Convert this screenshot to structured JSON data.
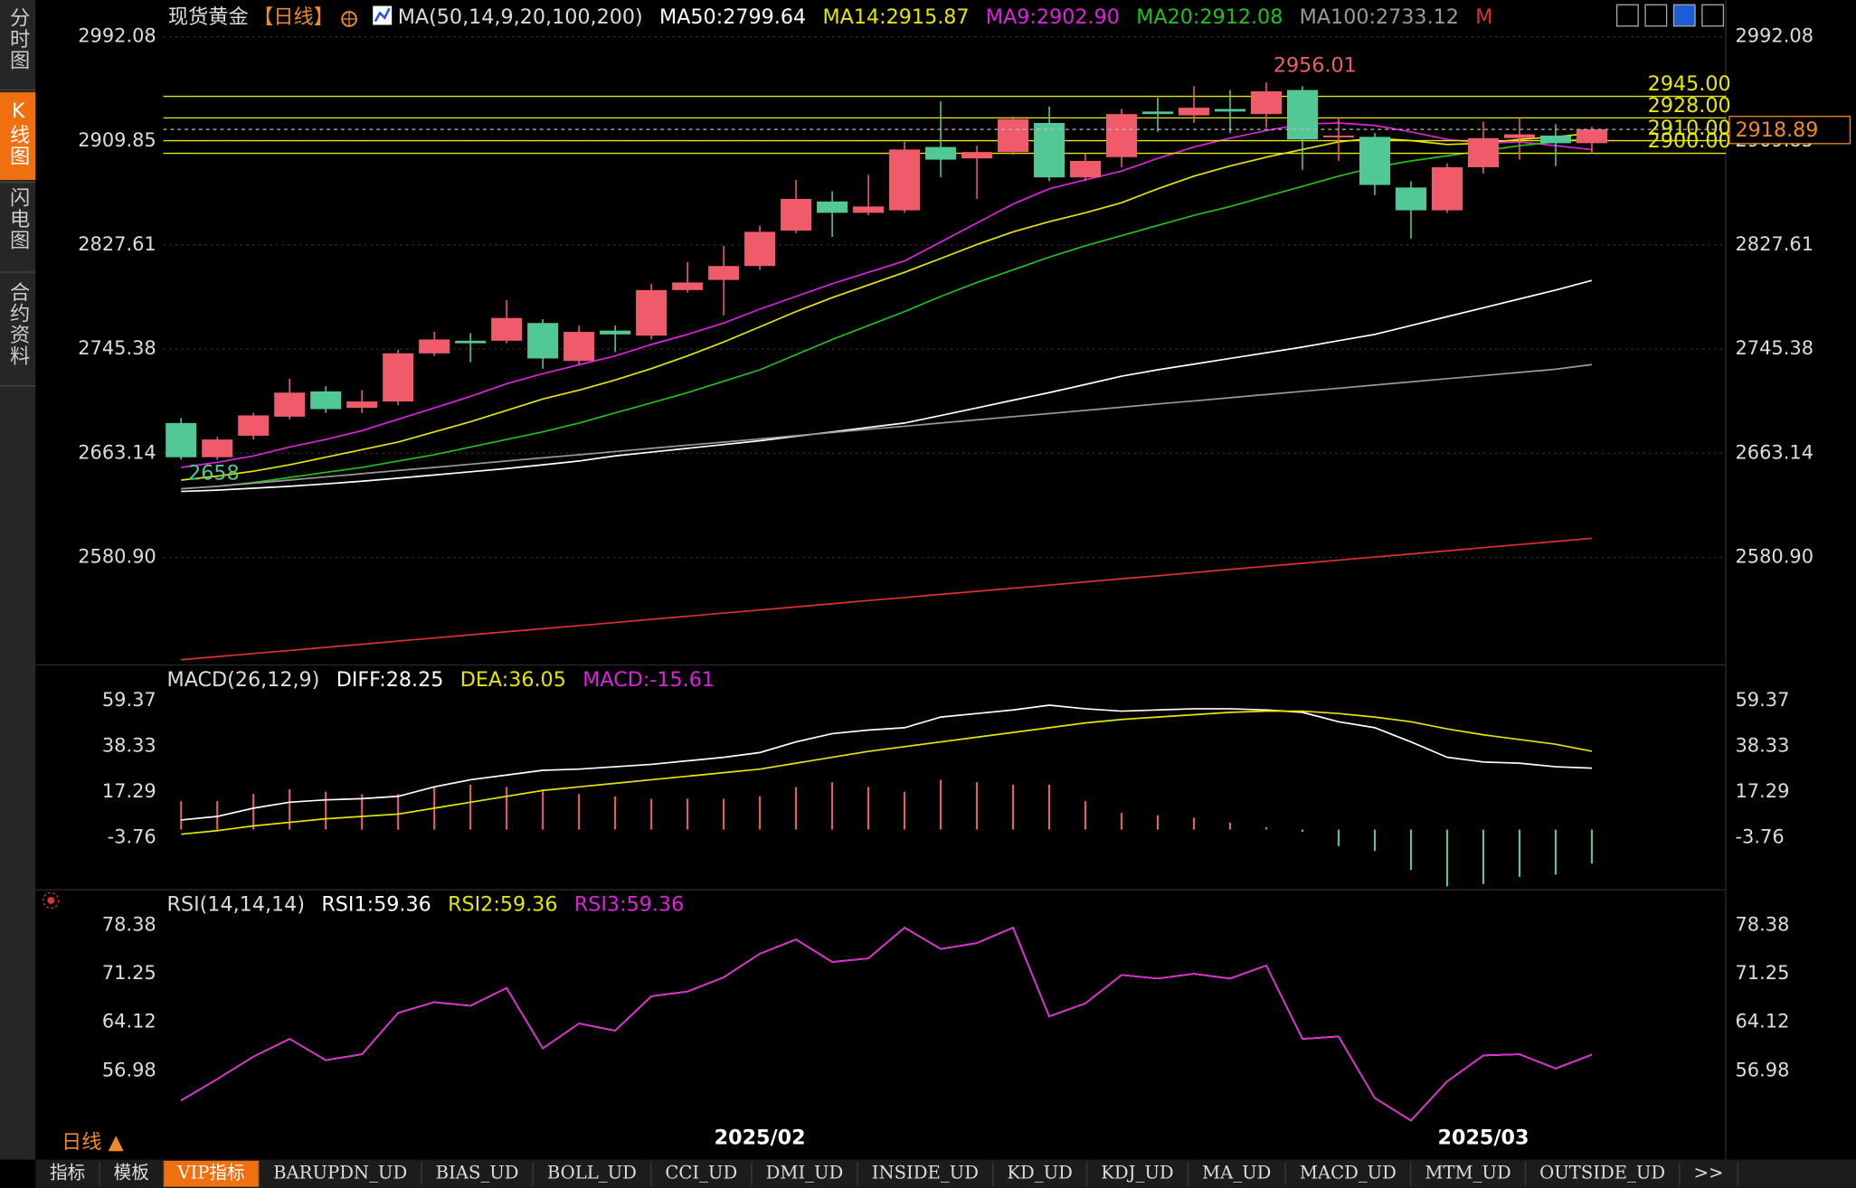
{
  "chart_data": [
    {
      "type": "candlestick",
      "title": "现货黄金",
      "period": "【日线】",
      "indicator": "MA(50,14,9,20,100,200)",
      "categories": [
        null,
        null,
        null,
        null,
        null,
        null,
        null,
        null,
        null,
        null,
        null,
        null,
        null,
        null,
        null,
        null,
        "2025/02",
        null,
        null,
        null,
        null,
        null,
        null,
        null,
        null,
        null,
        null,
        null,
        null,
        null,
        null,
        null,
        null,
        null,
        null,
        null,
        "2025/03",
        null,
        null,
        null
      ],
      "open": [
        2687,
        2660,
        2677,
        2692,
        2712,
        2699,
        2704,
        2742,
        2752,
        2752,
        2766,
        2736,
        2760,
        2756,
        2792,
        2800,
        2811,
        2839,
        2862,
        2853,
        2855,
        2905,
        2896,
        2901,
        2924,
        2881,
        2897,
        2933,
        2930,
        2935,
        2931,
        2950,
        2913,
        2913,
        2873,
        2855,
        2889,
        2912,
        2914,
        2908
      ],
      "high": [
        2691,
        2676,
        2695,
        2722,
        2716,
        2713,
        2745,
        2759,
        2758,
        2784,
        2769,
        2764,
        2764,
        2797,
        2814,
        2827,
        2843,
        2879,
        2870,
        2883,
        2909,
        2941,
        2906,
        2929,
        2937,
        2900,
        2935,
        2944,
        2953,
        2950,
        2956.01,
        2953,
        2928,
        2916,
        2878,
        2892,
        2925,
        2928,
        2923,
        2921
      ],
      "low": [
        2658,
        2658,
        2674,
        2690,
        2695,
        2695,
        2701,
        2740,
        2735,
        2750,
        2730,
        2733,
        2743,
        2753,
        2790,
        2772,
        2808,
        2837,
        2834,
        2851,
        2853,
        2881,
        2864,
        2899,
        2878,
        2878,
        2889,
        2917,
        2924,
        2916,
        2920,
        2887,
        2894,
        2867,
        2832.58,
        2853,
        2884,
        2895,
        2890,
        2900
      ],
      "close": [
        2660,
        2674,
        2693,
        2711,
        2698,
        2704,
        2742,
        2753,
        2750,
        2770,
        2738,
        2759,
        2757,
        2792,
        2798,
        2811,
        2838,
        2864,
        2853,
        2858,
        2903,
        2895,
        2901,
        2927,
        2881,
        2894,
        2931,
        2931,
        2936,
        2933,
        2949,
        2911,
        2914,
        2875,
        2855,
        2889,
        2912,
        2915,
        2908,
        2918.89
      ],
      "up_color": "#ef5b6a",
      "down_color": "#52c896",
      "series": [
        {
          "name": "MA50:2799.64",
          "color": "#ffffff",
          "values": [
            2633,
            2634,
            2635.5,
            2637,
            2639,
            2641,
            2643.5,
            2646,
            2648.5,
            2651,
            2654,
            2657,
            2661,
            2664,
            2667,
            2670,
            2673,
            2676.5,
            2680,
            2683.5,
            2687,
            2693,
            2699,
            2705,
            2711,
            2717.5,
            2724,
            2729,
            2733.5,
            2738,
            2742.5,
            2747,
            2752,
            2757,
            2764,
            2771,
            2778,
            2785,
            2792,
            2799.64
          ]
        },
        {
          "name": "MA14:2915.87",
          "color": "#e6e600",
          "values": [
            2642,
            2645,
            2649,
            2654,
            2660,
            2666,
            2672,
            2680,
            2688,
            2697,
            2706,
            2713,
            2721,
            2730,
            2740,
            2751,
            2763,
            2775,
            2786,
            2796,
            2806,
            2817,
            2828,
            2838,
            2846,
            2853,
            2861,
            2872,
            2882,
            2890,
            2897,
            2903,
            2909,
            2912,
            2910,
            2907,
            2908,
            2911,
            2913,
            2915.87
          ]
        },
        {
          "name": "MA9:2902.90",
          "color": "#e020e0",
          "values": [
            2652,
            2656,
            2661,
            2668,
            2674,
            2681,
            2690,
            2699,
            2708,
            2718,
            2726,
            2733,
            2740,
            2749,
            2757,
            2766,
            2777,
            2787,
            2797,
            2806,
            2815,
            2830,
            2845,
            2860,
            2872,
            2879,
            2886,
            2896,
            2905,
            2912,
            2918,
            2923,
            2924,
            2922,
            2917,
            2911,
            2908,
            2909,
            2906,
            2902.9
          ]
        },
        {
          "name": "MA20:2912.08",
          "color": "#20c020",
          "values": [
            2635,
            2637,
            2640,
            2644,
            2648,
            2652,
            2657,
            2662,
            2668,
            2674,
            2680,
            2687,
            2695,
            2703,
            2711,
            2720,
            2729,
            2741,
            2753,
            2764,
            2775,
            2787,
            2798,
            2808,
            2818,
            2827,
            2835,
            2843,
            2851,
            2858,
            2866,
            2874,
            2882,
            2889,
            2894,
            2898,
            2902,
            2906,
            2909,
            2912.08
          ]
        },
        {
          "name": "MA100:2733.12",
          "color": "#999999",
          "values": [
            2635,
            2637,
            2639.5,
            2642,
            2644.5,
            2647,
            2649.5,
            2652,
            2654.5,
            2657,
            2659.5,
            2662,
            2664.5,
            2667,
            2669.5,
            2672,
            2674.5,
            2677,
            2679.5,
            2682,
            2684.5,
            2687,
            2689.5,
            2692,
            2694.5,
            2697,
            2699.5,
            2702,
            2704.5,
            2707,
            2709.5,
            2712,
            2714.5,
            2717,
            2719.5,
            2722,
            2724.5,
            2727,
            2729.5,
            2733.12
          ]
        },
        {
          "name": "M",
          "color": "#e03030",
          "values": [
            2500,
            2502.5,
            2505,
            2507.4,
            2509.8,
            2512.3,
            2514.8,
            2517.2,
            2519.7,
            2522.2,
            2524.6,
            2527,
            2529.5,
            2532,
            2534.4,
            2536.9,
            2539.4,
            2541.8,
            2544.3,
            2546.8,
            2549.2,
            2551.7,
            2554.1,
            2556.6,
            2559,
            2561.5,
            2564,
            2566.4,
            2568.9,
            2571.4,
            2573.8,
            2576.3,
            2578.7,
            2581.2,
            2583.6,
            2586.1,
            2588.6,
            2591,
            2593.5,
            2596
          ]
        }
      ],
      "levels": {
        "color": "#e8e800",
        "values": [
          2945,
          2928,
          2910,
          2900
        ],
        "value_labels": [
          "2945.00",
          "2928.00",
          "2910.00",
          "2900.00"
        ]
      },
      "last_price": 2918.89,
      "ylim": [
        2497.78,
        3002.36
      ],
      "yticks": [
        2992.08,
        2909.85,
        2827.61,
        2745.38,
        2663.14,
        {
          "value": 2580.9,
          "label": "2580.90"
        }
      ],
      "grid": true
    },
    {
      "type": "macd",
      "title": "MACD(26,12,9)",
      "up_color": "#ef5b6a",
      "down_color": "#52c896",
      "series": [
        {
          "name": "DIFF:28.25",
          "color": "#ffffff",
          "values": [
            4.4,
            6.04,
            9.85,
            12.57,
            13.66,
            14.2,
            15.29,
            19.64,
            22.91,
            25.09,
            27.26,
            27.81,
            28.89,
            29.98,
            31.62,
            33.25,
            35.43,
            40.32,
            44.13,
            45.77,
            46.85,
            51.75,
            53.38,
            55.02,
            57.19,
            55.56,
            54.47,
            55.02,
            55.56,
            55.56,
            55.02,
            53.93,
            49.57,
            46.85,
            40.32,
            33.25,
            31.07,
            30.53,
            28.89,
            28.25
          ]
        },
        {
          "name": "DEA:36.05",
          "color": "#e6e600",
          "values": [
            -2.12,
            -0.49,
            1.68,
            3.32,
            4.95,
            6.04,
            7.13,
            9.85,
            12.57,
            15.29,
            18.01,
            19.64,
            21.28,
            22.91,
            24.54,
            26.17,
            27.81,
            30.53,
            33.25,
            35.97,
            38.15,
            40.32,
            42.5,
            44.68,
            46.85,
            49.03,
            50.66,
            51.75,
            52.84,
            53.93,
            54.47,
            54.47,
            53.38,
            51.75,
            49.57,
            46.31,
            43.59,
            41.41,
            39.23,
            36.05
          ]
        },
        {
          "name": "MACD:-15.61",
          "color": "#e020e0",
          "bars": true,
          "values": [
            13.04,
            13.06,
            16.34,
            18.5,
            17.42,
            16.32,
            16.32,
            19.58,
            20.68,
            19.6,
            18.5,
            16.34,
            15.22,
            14.14,
            14.16,
            14.16,
            15.24,
            19.58,
            21.76,
            19.6,
            17.4,
            22.86,
            21.76,
            20.68,
            20.68,
            13.06,
            7.62,
            6.54,
            5.44,
            3.26,
            1.1,
            -1.08,
            -7.62,
            -9.8,
            -18.5,
            -26.12,
            -25.04,
            -21.76,
            -20.68,
            -15.61
          ]
        }
      ],
      "ylim": [
        -26.6,
        63.18
      ],
      "yticks": [
        59.37,
        38.33,
        17.29,
        -3.76
      ]
    },
    {
      "type": "line",
      "title": "RSI(14,14,14)",
      "series": [
        {
          "name": "RSI1:59.36",
          "color": "#ffffff",
          "values": [
            52.64,
            55.77,
            59.08,
            61.69,
            58.56,
            59.42,
            65.51,
            67.08,
            66.55,
            69.16,
            60.29,
            63.95,
            62.9,
            67.95,
            68.64,
            70.73,
            74.21,
            76.29,
            72.99,
            73.51,
            78.03,
            74.9,
            75.77,
            78.03,
            64.99,
            66.9,
            71.08,
            70.55,
            71.25,
            70.55,
            72.47,
            61.69,
            62.03,
            52.99,
            49.69,
            55.43,
            59.25,
            59.42,
            57.34,
            59.36
          ]
        },
        {
          "name": "RSI2:59.36",
          "color": "#e6e600",
          "values": [
            52.64,
            55.77,
            59.08,
            61.69,
            58.56,
            59.42,
            65.51,
            67.08,
            66.55,
            69.16,
            60.29,
            63.95,
            62.9,
            67.95,
            68.64,
            70.73,
            74.21,
            76.29,
            72.99,
            73.51,
            78.03,
            74.9,
            75.77,
            78.03,
            64.99,
            66.9,
            71.08,
            70.55,
            71.25,
            70.55,
            72.47,
            61.69,
            62.03,
            52.99,
            49.69,
            55.43,
            59.25,
            59.42,
            57.34,
            59.36
          ]
        },
        {
          "name": "RSI3:59.36",
          "color": "#e020e0",
          "values": [
            52.64,
            55.77,
            59.08,
            61.69,
            58.56,
            59.42,
            65.51,
            67.08,
            66.55,
            69.16,
            60.29,
            63.95,
            62.9,
            67.95,
            68.64,
            70.73,
            74.21,
            76.29,
            72.99,
            73.51,
            78.03,
            74.9,
            75.77,
            78.03,
            64.99,
            66.9,
            71.08,
            70.55,
            71.25,
            70.55,
            72.47,
            61.69,
            62.03,
            52.99,
            49.69,
            55.43,
            59.25,
            59.42,
            57.34,
            59.36
          ]
        }
      ],
      "ylim": [
        48.29,
        80.47
      ],
      "yticks": [
        78.38,
        71.25,
        64.12,
        56.98
      ]
    }
  ],
  "ui": {
    "sidebar": [
      "分时图",
      "K线图",
      "闪电图",
      "合约资料"
    ],
    "period_selector": "日线 ▲",
    "tabs": [
      "指标",
      "模板",
      "VIP指标",
      "BARUPDN_UD",
      "BIAS_UD",
      "BOLL_UD",
      "CCI_UD",
      "DMI_UD",
      "INSIDE_UD",
      "KD_UD",
      "KDJ_UD",
      "MA_UD",
      "MACD_UD",
      "MTM_UD",
      "OUTSIDE_UD",
      ">>"
    ]
  }
}
